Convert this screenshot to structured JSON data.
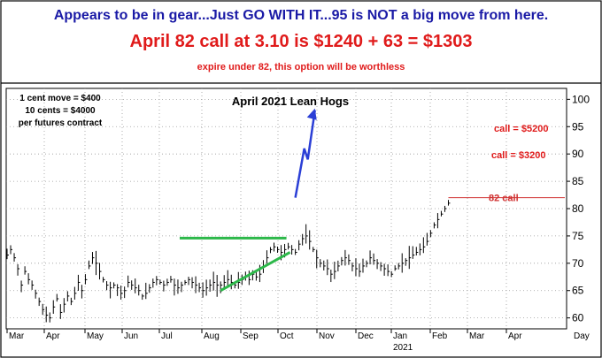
{
  "header": {
    "headline": "Appears to be in gear...Just GO WITH IT...95 is NOT a big move from here.",
    "trade_line": "April 82 call at 3.10 is $1240 + 63 = $1303",
    "expire_note": "expire under 82, this option will be worthless"
  },
  "colors": {
    "headline": "#1a1aa6",
    "red_text": "#e01b1b",
    "price": "#000000",
    "trendline": "#2db84a",
    "projection": "#2b3fd6",
    "strike_line": "#d03030",
    "grid": "#9a9a9a"
  },
  "chart_data": {
    "type": "bar",
    "title": "April 2021 Lean Hogs",
    "notes": [
      "1 cent move = $400",
      "10 cents = $4000",
      "per futures contract"
    ],
    "x_ticks": [
      "Mar",
      "Apr",
      "May",
      "Jun",
      "Jul",
      "Aug",
      "Sep",
      "Oct",
      "Nov",
      "Dec",
      "Jan",
      "Feb",
      "Mar",
      "Apr",
      "Day"
    ],
    "year_label": "2021",
    "y_ticks": [
      "100",
      "95",
      "90",
      "85",
      "80",
      "75",
      "70",
      "65",
      "60"
    ],
    "ylim": [
      58,
      102
    ],
    "grid": true,
    "series": [
      {
        "values": [
          71.5,
          72.5,
          71.0,
          69.0,
          66.0,
          68.5,
          67.0,
          66.0,
          64.5,
          63.0,
          61.5,
          60.5,
          60.0,
          62.0,
          63.5,
          61.0,
          62.5,
          64.0,
          63.0,
          64.5,
          66.5,
          65.0,
          67.0,
          69.5,
          71.0,
          70.0,
          68.5,
          67.0,
          66.0,
          65.5,
          66.0,
          65.5,
          64.5,
          65.0,
          66.5,
          66.0,
          65.5,
          65.0,
          64.0,
          64.5,
          65.5,
          66.5,
          67.0,
          66.5,
          66.0,
          66.5,
          67.0,
          66.0,
          65.5,
          66.0,
          66.5,
          67.0,
          66.5,
          66.0,
          65.5,
          65.0,
          65.5,
          66.0,
          66.5,
          66.0,
          66.0,
          66.5,
          67.0,
          66.5,
          66.0,
          66.5,
          67.0,
          67.5,
          67.0,
          68.0,
          67.5,
          68.0,
          69.5,
          71.0,
          72.5,
          73.0,
          72.5,
          72.0,
          72.5,
          73.0,
          72.5,
          72.0,
          73.5,
          74.5,
          75.0,
          74.0,
          72.5,
          71.0,
          70.0,
          69.5,
          69.0,
          68.0,
          68.5,
          69.5,
          70.5,
          71.0,
          70.5,
          69.5,
          69.0,
          68.5,
          69.5,
          70.0,
          71.0,
          70.5,
          70.0,
          69.5,
          69.0,
          68.5,
          68.0,
          69.0,
          69.5,
          70.0,
          70.5,
          71.0,
          71.5,
          72.0,
          72.5,
          73.0,
          74.0,
          75.5,
          77.0,
          78.0,
          79.0,
          80.0,
          81.0
        ]
      }
    ],
    "annotations": {
      "strike_label": "82 call",
      "call_high": "call = $5200",
      "call_mid": "call = $3200",
      "resistance": {
        "x": [
          48.5,
          78.5
        ],
        "y": [
          74.6,
          74.6
        ]
      },
      "support": {
        "x": [
          60,
          79.5
        ],
        "y": [
          65.0,
          72.0
        ]
      },
      "strike_line_y": 82,
      "projection": {
        "x": [
          81,
          83.5,
          84.5,
          86.5
        ],
        "y": [
          82,
          91.0,
          89.0,
          98.0
        ]
      }
    }
  }
}
